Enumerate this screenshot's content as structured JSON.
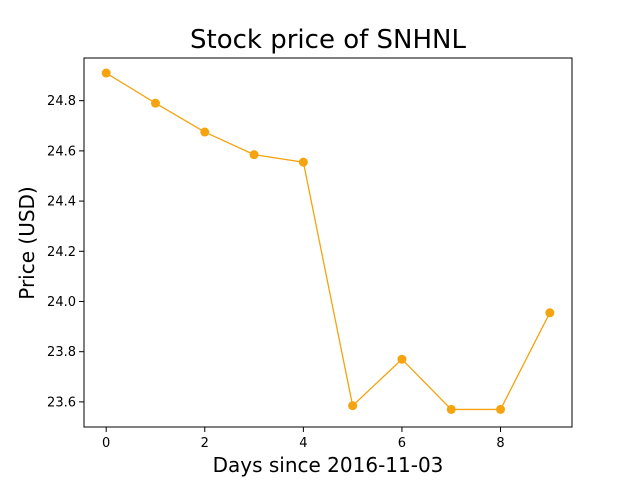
{
  "chart_data": {
    "type": "line",
    "title": "Stock price of SNHNL",
    "xlabel": "Days since 2016-11-03",
    "ylabel": "Price (USD)",
    "x": [
      0,
      1,
      2,
      3,
      4,
      5,
      6,
      7,
      8,
      9
    ],
    "series": [
      {
        "values": [
          24.91,
          24.79,
          24.675,
          24.585,
          24.555,
          23.585,
          23.77,
          23.57,
          23.57,
          23.955
        ],
        "color": "#f5a30f"
      }
    ],
    "xlim": [
      -0.45,
      9.45
    ],
    "ylim": [
      23.5,
      24.97
    ],
    "xticks": [
      0,
      2,
      4,
      6,
      8
    ],
    "xtick_labels": [
      "0",
      "2",
      "4",
      "6",
      "8"
    ],
    "yticks": [
      23.6,
      23.8,
      24.0,
      24.2,
      24.4,
      24.6,
      24.8
    ],
    "ytick_labels": [
      "23.6",
      "23.8",
      "24.0",
      "24.2",
      "24.4",
      "24.6",
      "24.8"
    ],
    "grid": false,
    "legend": "none"
  }
}
